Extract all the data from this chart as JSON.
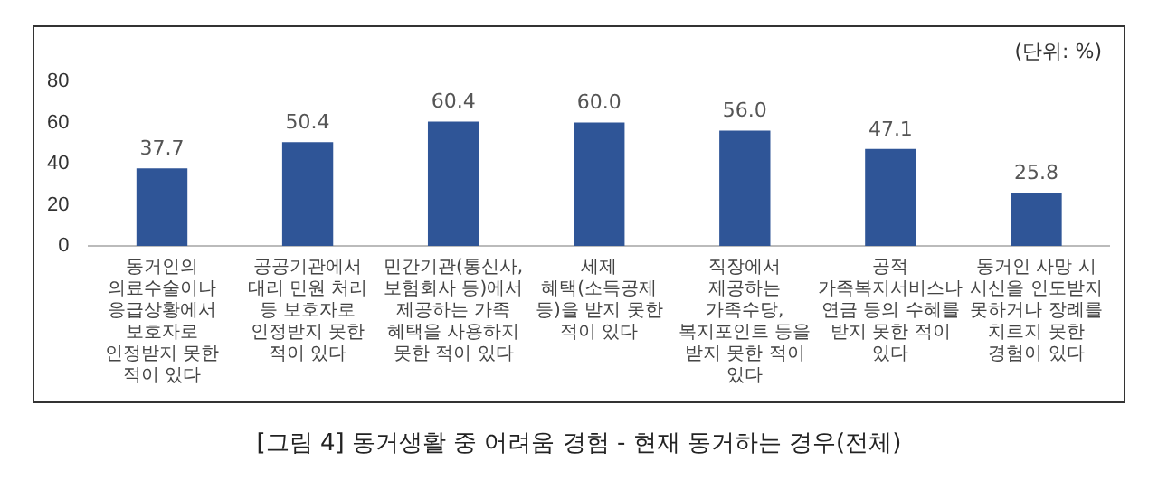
{
  "chart_data": {
    "type": "bar",
    "title": "[그림 4] 동거생활 중 어려움 경험 - 현재 동거하는 경우(전체)",
    "categories": [
      "동거인의 의료수술이나 응급상황에서 보호자로 인정받지 못한 적이 있다",
      "공공기관에서 대리 민원 처리 등 보호자로 인정받지 못한 적이 있다",
      "민간기관(통신사, 보험회사 등)에서 제공하는 가족 혜택을 사용하지 못한 적이 있다",
      "세제 혜택(소득공제 등)을 받지 못한 적이 있다",
      "직장에서 제공하는 가족수당, 복지포인트 등을 받지 못한 적이 있다",
      "공적 가족복지서비스나 연금 등의 수혜를 받지 못한 적이 있다",
      "동거인 사망 시 시신을 인도받지 못하거나 장례를 치르지 못한 경험이 있다"
    ],
    "values": [
      37.7,
      50.4,
      60.4,
      60.0,
      56.0,
      47.1,
      25.8
    ],
    "value_labels": [
      "37.7",
      "50.4",
      "60.4",
      "60.0",
      "56.0",
      "47.1",
      "25.8"
    ],
    "color": "#2f5597",
    "ylim": [
      0,
      80
    ],
    "yticks": [
      0,
      20,
      40,
      60,
      80
    ],
    "grid": false,
    "legend": false,
    "annotations": [
      "(단위: %)"
    ]
  }
}
